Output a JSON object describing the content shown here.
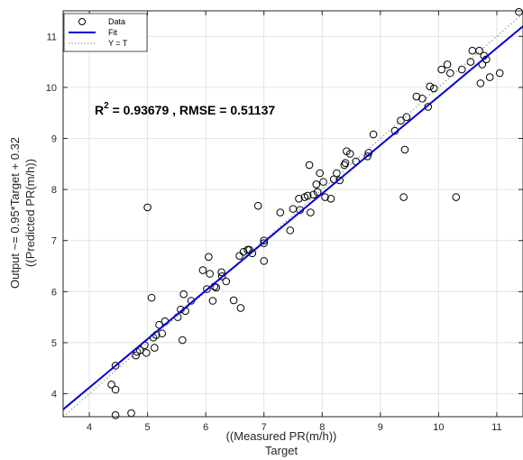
{
  "chart_data": {
    "type": "scatter",
    "xlabel_lines": [
      "((Measured PR(m/h))",
      "Target"
    ],
    "ylabel_lines": [
      "Output ~= 0.95*Target + 0.32",
      "((Predicted PR(m/h))"
    ],
    "xlim": [
      3.55,
      11.45
    ],
    "ylim": [
      3.55,
      11.5
    ],
    "xticks": [
      4,
      5,
      6,
      7,
      8,
      9,
      10,
      11
    ],
    "yticks": [
      4,
      5,
      6,
      7,
      8,
      9,
      10,
      11
    ],
    "grid": true,
    "legend_position": "top-left",
    "legend": {
      "data": "Data",
      "fit": "Fit",
      "identity": "Y = T"
    },
    "annotation": {
      "r2_base": "R",
      "r2_sup": "2",
      "r2_rest": " = 0.93679 , RMSE = 0.51137"
    },
    "fit": {
      "slope": 0.95,
      "intercept": 0.32
    },
    "series": [
      {
        "name": "Data",
        "points": [
          [
            4.38,
            4.18
          ],
          [
            4.45,
            4.08
          ],
          [
            4.45,
            3.58
          ],
          [
            4.45,
            4.55
          ],
          [
            4.72,
            3.62
          ],
          [
            4.8,
            4.75
          ],
          [
            4.82,
            4.82
          ],
          [
            4.87,
            4.85
          ],
          [
            4.95,
            4.95
          ],
          [
            4.98,
            4.8
          ],
          [
            5.0,
            7.65
          ],
          [
            5.07,
            5.88
          ],
          [
            5.1,
            5.1
          ],
          [
            5.12,
            4.9
          ],
          [
            5.15,
            5.15
          ],
          [
            5.2,
            5.35
          ],
          [
            5.25,
            5.18
          ],
          [
            5.3,
            5.42
          ],
          [
            5.52,
            5.5
          ],
          [
            5.57,
            5.65
          ],
          [
            5.6,
            5.05
          ],
          [
            5.62,
            5.95
          ],
          [
            5.65,
            5.62
          ],
          [
            5.75,
            5.82
          ],
          [
            5.95,
            6.42
          ],
          [
            6.02,
            6.05
          ],
          [
            6.05,
            6.68
          ],
          [
            6.07,
            6.35
          ],
          [
            6.12,
            5.82
          ],
          [
            6.15,
            6.1
          ],
          [
            6.18,
            6.08
          ],
          [
            6.27,
            6.38
          ],
          [
            6.28,
            6.3
          ],
          [
            6.35,
            6.2
          ],
          [
            6.48,
            5.83
          ],
          [
            6.58,
            6.7
          ],
          [
            6.6,
            5.68
          ],
          [
            6.65,
            6.78
          ],
          [
            6.72,
            6.82
          ],
          [
            6.75,
            6.82
          ],
          [
            6.8,
            6.75
          ],
          [
            6.9,
            7.68
          ],
          [
            7.0,
            7.0
          ],
          [
            7.0,
            6.95
          ],
          [
            7.0,
            6.6
          ],
          [
            7.28,
            7.55
          ],
          [
            7.45,
            7.2
          ],
          [
            7.5,
            7.62
          ],
          [
            7.6,
            7.82
          ],
          [
            7.62,
            7.6
          ],
          [
            7.7,
            7.85
          ],
          [
            7.75,
            7.88
          ],
          [
            7.78,
            8.48
          ],
          [
            7.8,
            7.55
          ],
          [
            7.85,
            7.9
          ],
          [
            7.9,
            8.1
          ],
          [
            7.92,
            7.95
          ],
          [
            7.96,
            8.32
          ],
          [
            8.02,
            8.15
          ],
          [
            8.05,
            7.85
          ],
          [
            8.15,
            7.82
          ],
          [
            8.2,
            8.2
          ],
          [
            8.25,
            8.32
          ],
          [
            8.3,
            8.18
          ],
          [
            8.38,
            8.48
          ],
          [
            8.4,
            8.52
          ],
          [
            8.42,
            8.75
          ],
          [
            8.48,
            8.7
          ],
          [
            8.58,
            8.55
          ],
          [
            8.78,
            8.65
          ],
          [
            8.8,
            8.72
          ],
          [
            8.88,
            9.08
          ],
          [
            9.25,
            9.15
          ],
          [
            9.35,
            9.35
          ],
          [
            9.4,
            7.85
          ],
          [
            9.42,
            8.78
          ],
          [
            9.45,
            9.42
          ],
          [
            9.62,
            9.82
          ],
          [
            9.72,
            9.78
          ],
          [
            9.82,
            9.62
          ],
          [
            9.85,
            10.02
          ],
          [
            9.92,
            9.98
          ],
          [
            10.05,
            10.35
          ],
          [
            10.15,
            10.45
          ],
          [
            10.2,
            10.28
          ],
          [
            10.3,
            7.85
          ],
          [
            10.4,
            10.35
          ],
          [
            10.55,
            10.5
          ],
          [
            10.58,
            10.72
          ],
          [
            10.7,
            10.72
          ],
          [
            10.72,
            10.08
          ],
          [
            10.75,
            10.45
          ],
          [
            10.78,
            10.62
          ],
          [
            10.82,
            10.55
          ],
          [
            10.88,
            10.2
          ],
          [
            11.05,
            10.28
          ],
          [
            11.38,
            11.48
          ]
        ]
      }
    ]
  }
}
